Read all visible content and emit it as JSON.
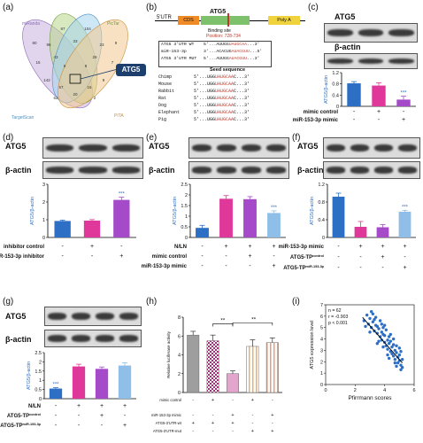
{
  "panels": {
    "a": {
      "label": "(a)",
      "venn_labels": [
        "miRanda",
        "PicTar",
        "TargetScan",
        "PITA"
      ],
      "target": "ATG5",
      "counts": [
        "80",
        "87",
        "104",
        "9",
        "96",
        "33",
        "23",
        "15",
        "43",
        "26",
        "7",
        "9",
        "8",
        "142",
        "9",
        "57",
        "16",
        "20",
        "62",
        "2"
      ]
    },
    "b": {
      "label": "(b)",
      "gene_parts": [
        "5'UTR",
        "CDS",
        "Poly A"
      ],
      "gene": "ATG5",
      "binding_title": "Binding site",
      "binding_position": "Position: 728-734",
      "alignment": [
        {
          "name": "ATG5 3'UTR WT",
          "seq": "5'...AUUGG",
          "site": "UAUGCAA",
          "tail": "...3'"
        },
        {
          "name": "miR-153-3p",
          "seq": "3'...ACACUG",
          "site": "AUACGUU",
          "tail": "...5'"
        },
        {
          "name": "ATG5 3'UTR MUT",
          "seq": "5'...AUUGG",
          "site": "AUACGUU",
          "tail": "...3'"
        }
      ],
      "seed_title": "Seed sequence",
      "species": [
        {
          "name": "Chimp",
          "seq": "5'...UGG",
          "site": "UAUGCAA",
          "tail": "C...3'"
        },
        {
          "name": "Mouse",
          "seq": "5'...UGG",
          "site": "UAUGCAA",
          "tail": "C...3'"
        },
        {
          "name": "Rabbit",
          "seq": "5'...UGG",
          "site": "UAUGCAA",
          "tail": "C...3'"
        },
        {
          "name": "Rat",
          "seq": "5'...UGG",
          "site": "UAUGCAA",
          "tail": "C...3'"
        },
        {
          "name": "Dog",
          "seq": "5'...UGG",
          "site": "UAUGCAA",
          "tail": "C...3'"
        },
        {
          "name": "Elephant",
          "seq": "5'...UGG",
          "site": "UAUGCAA",
          "tail": "C...3'"
        },
        {
          "name": "Pig",
          "seq": "5'...UGG",
          "site": "UAUGCAA",
          "tail": "C...3'"
        }
      ]
    },
    "c": {
      "label": "(c)"
    },
    "d": {
      "label": "(d)"
    },
    "e": {
      "label": "(e)"
    },
    "f": {
      "label": "(f)"
    },
    "g": {
      "label": "(g)"
    },
    "h": {
      "label": "(h)"
    },
    "i": {
      "label": "(i)"
    }
  },
  "blot_labels": {
    "atg5": "ATG5",
    "actin": "β-actin"
  },
  "colors": {
    "blue": "#2c6fc4",
    "pink": "#e0389a",
    "purple": "#a54bc9",
    "lightblue": "#8fbfe8",
    "salmon": "#ee9a7a"
  },
  "chart_data": [
    {
      "panel": "c",
      "type": "bar",
      "ylabel": "ATG5/β-actin",
      "ylim": [
        0,
        1.2
      ],
      "yticks": [
        0,
        0.4,
        0.8,
        1.2
      ],
      "values": [
        0.82,
        0.74,
        0.24
      ],
      "errors": [
        0.06,
        0.1,
        0.12
      ],
      "annotations": [
        "",
        "",
        "***"
      ],
      "conditions": [
        {
          "name": "mimic control",
          "signs": [
            "-",
            "+",
            "-"
          ]
        },
        {
          "name": "miR-153-3p mimic",
          "signs": [
            "-",
            "-",
            "+"
          ]
        }
      ]
    },
    {
      "panel": "d",
      "type": "bar",
      "ylabel": "ATG5/β-actin",
      "ylim": [
        0,
        3
      ],
      "yticks": [
        0,
        1,
        2,
        3
      ],
      "values": [
        0.93,
        0.95,
        2.12
      ],
      "errors": [
        0.05,
        0.06,
        0.15
      ],
      "annotations": [
        "",
        "",
        "***"
      ],
      "conditions": [
        {
          "name": "inhibitor control",
          "signs": [
            "-",
            "+",
            "-"
          ]
        },
        {
          "name": "miR-153-3p inhibitor",
          "signs": [
            "-",
            "-",
            "+"
          ]
        }
      ]
    },
    {
      "panel": "e",
      "type": "bar",
      "ylabel": "ATG5/β-actin",
      "ylim": [
        0,
        2.5
      ],
      "yticks": [
        0,
        0.5,
        1.0,
        1.5,
        2.0,
        2.5
      ],
      "values": [
        0.45,
        1.82,
        1.8,
        1.15
      ],
      "errors": [
        0.12,
        0.15,
        0.12,
        0.1
      ],
      "annotations": [
        "",
        "",
        "",
        "***"
      ],
      "conditions": [
        {
          "name": "N/LN",
          "signs": [
            "-",
            "+",
            "+",
            "+"
          ]
        },
        {
          "name": "mimic control",
          "signs": [
            "-",
            "-",
            "+",
            "-"
          ]
        },
        {
          "name": "miR-153-3p mimic",
          "signs": [
            "-",
            "-",
            "-",
            "+"
          ]
        }
      ]
    },
    {
      "panel": "f",
      "type": "bar",
      "ylabel": "ATG5/β-actin",
      "ylim": [
        0,
        1.2
      ],
      "yticks": [
        0,
        0.4,
        0.8,
        1.2
      ],
      "values": [
        0.92,
        0.24,
        0.23,
        0.58
      ],
      "errors": [
        0.08,
        0.12,
        0.06,
        0.03
      ],
      "annotations": [
        "",
        "",
        "",
        "***"
      ],
      "conditions": [
        {
          "name": "miR-153-3p mimic",
          "signs": [
            "-",
            "+",
            "+",
            "+"
          ]
        },
        {
          "name": "ATG5-TP",
          "sup": "control",
          "signs": [
            "-",
            "-",
            "+",
            "-"
          ]
        },
        {
          "name": "ATG5-TP",
          "sup": "miR-153-3p",
          "signs": [
            "-",
            "-",
            "-",
            "+"
          ]
        }
      ]
    },
    {
      "panel": "g",
      "type": "bar",
      "ylabel": "ATG5/β-actin",
      "ylim": [
        0,
        2.5
      ],
      "yticks": [
        0,
        0.5,
        1.0,
        1.5,
        2.0,
        2.5
      ],
      "values": [
        0.55,
        1.75,
        1.62,
        1.8
      ],
      "errors": [
        0.05,
        0.12,
        0.1,
        0.15
      ],
      "annotations": [
        "***",
        "",
        "",
        ""
      ],
      "conditions": [
        {
          "name": "N/LN",
          "signs": [
            "-",
            "+",
            "+",
            "+"
          ]
        },
        {
          "name": "ATG5-TP",
          "sup": "control",
          "signs": [
            "-",
            "-",
            "+",
            "-"
          ]
        },
        {
          "name": "ATG5-TP",
          "sup": "miR-153-3p",
          "signs": [
            "-",
            "-",
            "-",
            "+"
          ]
        }
      ]
    },
    {
      "panel": "h",
      "type": "bar",
      "ylabel": "Relative luciferase activity",
      "ylim": [
        0,
        8
      ],
      "yticks": [
        0,
        2,
        4,
        6,
        8
      ],
      "values": [
        6.1,
        5.5,
        2.0,
        4.9,
        5.3
      ],
      "errors": [
        0.4,
        0.6,
        0.3,
        0.7,
        0.5
      ],
      "sig": [
        "**",
        "**"
      ],
      "conditions": [
        {
          "name": "mimic control",
          "signs": [
            "-",
            "+",
            "-",
            "+",
            "-"
          ]
        },
        {
          "name": "miR-153-3p mimic",
          "signs": [
            "-",
            "-",
            "+",
            "-",
            "+"
          ]
        },
        {
          "name": "ATG5-3'UTR-wt",
          "signs": [
            "+",
            "+",
            "+",
            "-",
            "-"
          ]
        },
        {
          "name": "ATG5-3'UTR-mut",
          "signs": [
            "-",
            "-",
            "-",
            "+",
            "+"
          ]
        }
      ]
    },
    {
      "panel": "i",
      "type": "scatter",
      "xlabel": "Pfirrmann scores",
      "ylabel": "ATG5 expression level",
      "xlim": [
        0,
        6
      ],
      "ylim": [
        0,
        7
      ],
      "xticks": [
        0,
        2,
        4,
        6
      ],
      "yticks": [
        0,
        1,
        2,
        3,
        4,
        5,
        6,
        7
      ],
      "stats": [
        "n = 62",
        "r = -0.903",
        "p < 0.001"
      ],
      "regression": {
        "x0": 2.5,
        "y0": 5.9,
        "x1": 5.2,
        "y1": 1.9
      },
      "points": [
        [
          2.6,
          5.6
        ],
        [
          2.8,
          6.1
        ],
        [
          2.9,
          5.3
        ],
        [
          3.0,
          5.8
        ],
        [
          3.1,
          5.0
        ],
        [
          3.2,
          6.2
        ],
        [
          3.2,
          5.5
        ],
        [
          3.3,
          4.7
        ],
        [
          3.4,
          5.2
        ],
        [
          3.4,
          5.9
        ],
        [
          3.5,
          4.5
        ],
        [
          3.5,
          5.1
        ],
        [
          3.6,
          4.9
        ],
        [
          3.7,
          4.2
        ],
        [
          3.7,
          5.6
        ],
        [
          3.8,
          4.6
        ],
        [
          3.8,
          3.9
        ],
        [
          3.9,
          4.4
        ],
        [
          3.9,
          5.0
        ],
        [
          4.0,
          3.7
        ],
        [
          4.0,
          4.3
        ],
        [
          4.1,
          3.4
        ],
        [
          4.1,
          4.8
        ],
        [
          4.2,
          3.9
        ],
        [
          4.2,
          3.1
        ],
        [
          4.3,
          4.2
        ],
        [
          4.3,
          3.6
        ],
        [
          4.4,
          2.9
        ],
        [
          4.4,
          3.8
        ],
        [
          4.5,
          3.3
        ],
        [
          4.5,
          2.7
        ],
        [
          4.6,
          3.5
        ],
        [
          4.6,
          2.5
        ],
        [
          4.7,
          3.0
        ],
        [
          4.7,
          2.2
        ],
        [
          4.8,
          2.8
        ],
        [
          4.8,
          3.4
        ],
        [
          4.9,
          2.4
        ],
        [
          4.9,
          1.9
        ],
        [
          5.0,
          2.6
        ],
        [
          5.0,
          2.1
        ],
        [
          5.1,
          1.7
        ],
        [
          5.1,
          2.9
        ],
        [
          5.2,
          1.5
        ],
        [
          5.2,
          2.2
        ],
        [
          3.0,
          4.6
        ],
        [
          3.3,
          5.7
        ],
        [
          3.6,
          3.8
        ],
        [
          4.0,
          5.2
        ],
        [
          4.4,
          4.4
        ],
        [
          4.8,
          1.6
        ],
        [
          5.0,
          3.2
        ],
        [
          3.9,
          3.3
        ],
        [
          4.2,
          2.6
        ],
        [
          2.7,
          5.1
        ],
        [
          3.1,
          6.4
        ],
        [
          4.6,
          4.0
        ],
        [
          5.1,
          1.3
        ],
        [
          4.3,
          2.3
        ],
        [
          3.5,
          3.6
        ],
        [
          4.7,
          1.9
        ],
        [
          3.8,
          5.3
        ]
      ]
    }
  ]
}
